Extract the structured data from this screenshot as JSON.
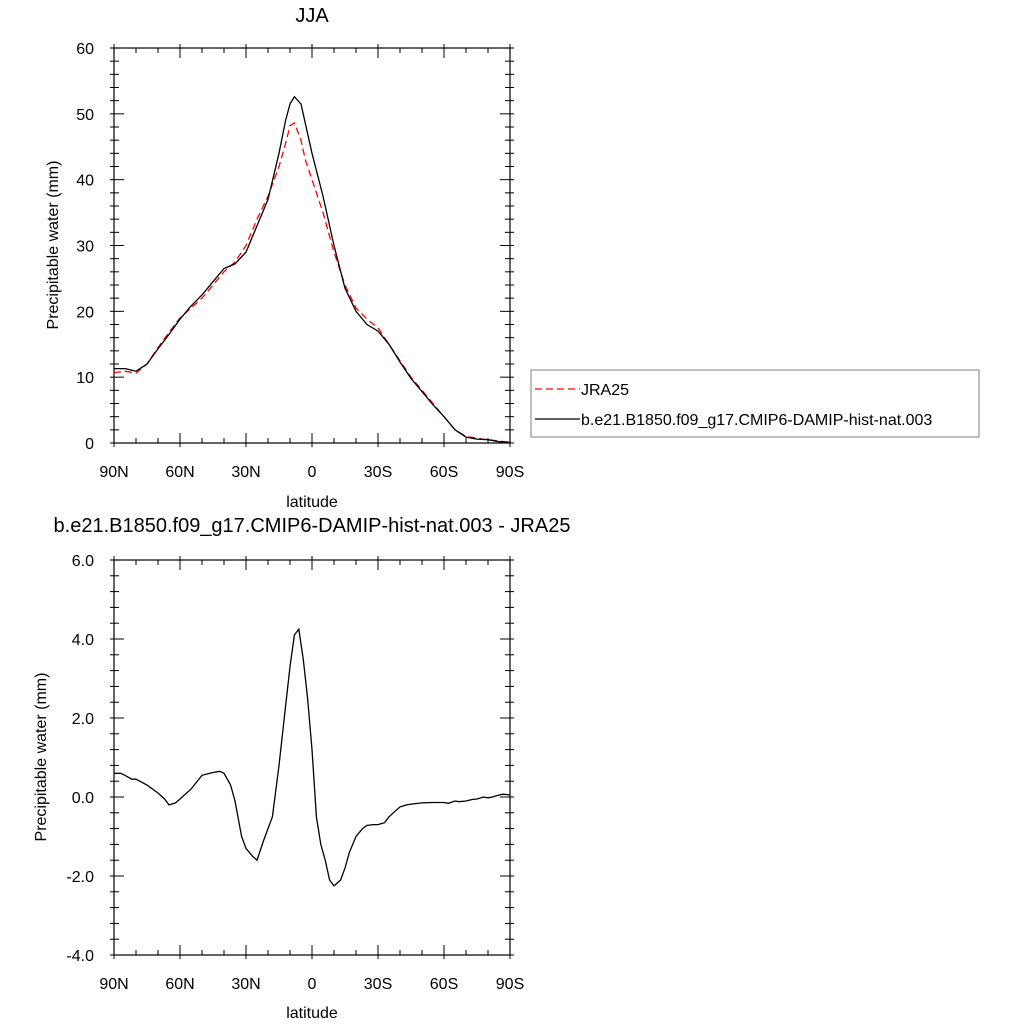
{
  "chart_data": [
    {
      "type": "line",
      "title": "JJA",
      "xlabel": "latitude",
      "ylabel": "Precipitable water (mm)",
      "xlim": [
        90,
        -90
      ],
      "ylim": [
        0,
        60
      ],
      "xticks": [
        "90N",
        "60N",
        "30N",
        "0",
        "30S",
        "60S",
        "90S"
      ],
      "yticks": [
        "0",
        "10",
        "20",
        "30",
        "40",
        "50",
        "60"
      ],
      "legend_position": "right",
      "series": [
        {
          "name": "JRA25",
          "color": "#ff0000",
          "dash": "dashed",
          "x": [
            90,
            85,
            80,
            75,
            70,
            65,
            60,
            55,
            50,
            45,
            40,
            35,
            30,
            25,
            20,
            15,
            12,
            10,
            8,
            5,
            3,
            0,
            -5,
            -10,
            -15,
            -20,
            -25,
            -30,
            -35,
            -40,
            -45,
            -50,
            -55,
            -60,
            -65,
            -70,
            -75,
            -80,
            -85,
            -90
          ],
          "y": [
            10.7,
            10.9,
            10.6,
            12.0,
            14.5,
            16.8,
            19.0,
            20.5,
            22.0,
            24.0,
            26.0,
            27.5,
            30.0,
            34.0,
            37.5,
            42.0,
            45.5,
            48.2,
            48.6,
            46.0,
            43.0,
            40.0,
            35.0,
            29.0,
            24.0,
            20.5,
            18.8,
            17.5,
            15.0,
            12.5,
            10.0,
            8.0,
            6.0,
            4.0,
            2.0,
            1.0,
            0.7,
            0.5,
            0.3,
            0.1
          ]
        },
        {
          "name": "b.e21.B1850.f09_g17.CMIP6-DAMIP-hist-nat.003",
          "color": "#000000",
          "dash": "solid",
          "x": [
            90,
            85,
            80,
            75,
            70,
            65,
            60,
            55,
            50,
            45,
            40,
            35,
            30,
            25,
            20,
            15,
            12,
            10,
            8,
            5,
            3,
            0,
            -5,
            -10,
            -15,
            -20,
            -25,
            -30,
            -35,
            -40,
            -45,
            -50,
            -55,
            -60,
            -65,
            -70,
            -75,
            -80,
            -85,
            -90
          ],
          "y": [
            11.3,
            11.3,
            10.9,
            12.0,
            14.3,
            16.5,
            18.8,
            20.8,
            22.5,
            24.5,
            26.5,
            27.2,
            29.0,
            33.0,
            37.0,
            44.0,
            49.0,
            51.5,
            52.6,
            51.5,
            48.5,
            44.0,
            37.5,
            30.0,
            23.5,
            20.0,
            18.0,
            17.0,
            15.0,
            12.3,
            9.8,
            7.8,
            5.8,
            4.0,
            2.0,
            0.9,
            0.6,
            0.5,
            0.2,
            0.1
          ]
        }
      ]
    },
    {
      "type": "line",
      "title": "b.e21.B1850.f09_g17.CMIP6-DAMIP-hist-nat.003 - JRA25",
      "xlabel": "latitude",
      "ylabel": "Precipitable water (mm)",
      "xlim": [
        90,
        -90
      ],
      "ylim": [
        -4.0,
        6.0
      ],
      "xticks": [
        "90N",
        "60N",
        "30N",
        "0",
        "30S",
        "60S",
        "90S"
      ],
      "yticks": [
        "-4.0",
        "-2.0",
        "0.0",
        "2.0",
        "4.0",
        "6.0"
      ],
      "series": [
        {
          "color": "#000000",
          "dash": "solid",
          "x": [
            90,
            87,
            85,
            82,
            80,
            75,
            70,
            67,
            65,
            62,
            60,
            55,
            50,
            45,
            42,
            40,
            37,
            35,
            32,
            30,
            27,
            25,
            22,
            20,
            18,
            15,
            12,
            10,
            8,
            6,
            4,
            2,
            0,
            -2,
            -4,
            -6,
            -8,
            -10,
            -13,
            -15,
            -17,
            -20,
            -23,
            -25,
            -28,
            -30,
            -33,
            -35,
            -38,
            -40,
            -43,
            -45,
            -50,
            -55,
            -60,
            -62,
            -65,
            -67,
            -70,
            -73,
            -75,
            -78,
            -80,
            -82,
            -85,
            -87,
            -90
          ],
          "y": [
            0.6,
            0.6,
            0.55,
            0.45,
            0.45,
            0.3,
            0.1,
            -0.05,
            -0.2,
            -0.15,
            -0.05,
            0.2,
            0.55,
            0.62,
            0.65,
            0.6,
            0.3,
            -0.1,
            -1.0,
            -1.3,
            -1.5,
            -1.6,
            -1.1,
            -0.8,
            -0.5,
            0.8,
            2.3,
            3.3,
            4.1,
            4.25,
            3.5,
            2.5,
            1.2,
            -0.5,
            -1.2,
            -1.6,
            -2.1,
            -2.25,
            -2.1,
            -1.8,
            -1.4,
            -1.0,
            -0.8,
            -0.72,
            -0.7,
            -0.7,
            -0.65,
            -0.5,
            -0.35,
            -0.25,
            -0.2,
            -0.18,
            -0.15,
            -0.14,
            -0.14,
            -0.16,
            -0.1,
            -0.12,
            -0.1,
            -0.06,
            -0.05,
            0.0,
            -0.02,
            0.0,
            0.05,
            0.07,
            0.05
          ]
        }
      ]
    }
  ]
}
